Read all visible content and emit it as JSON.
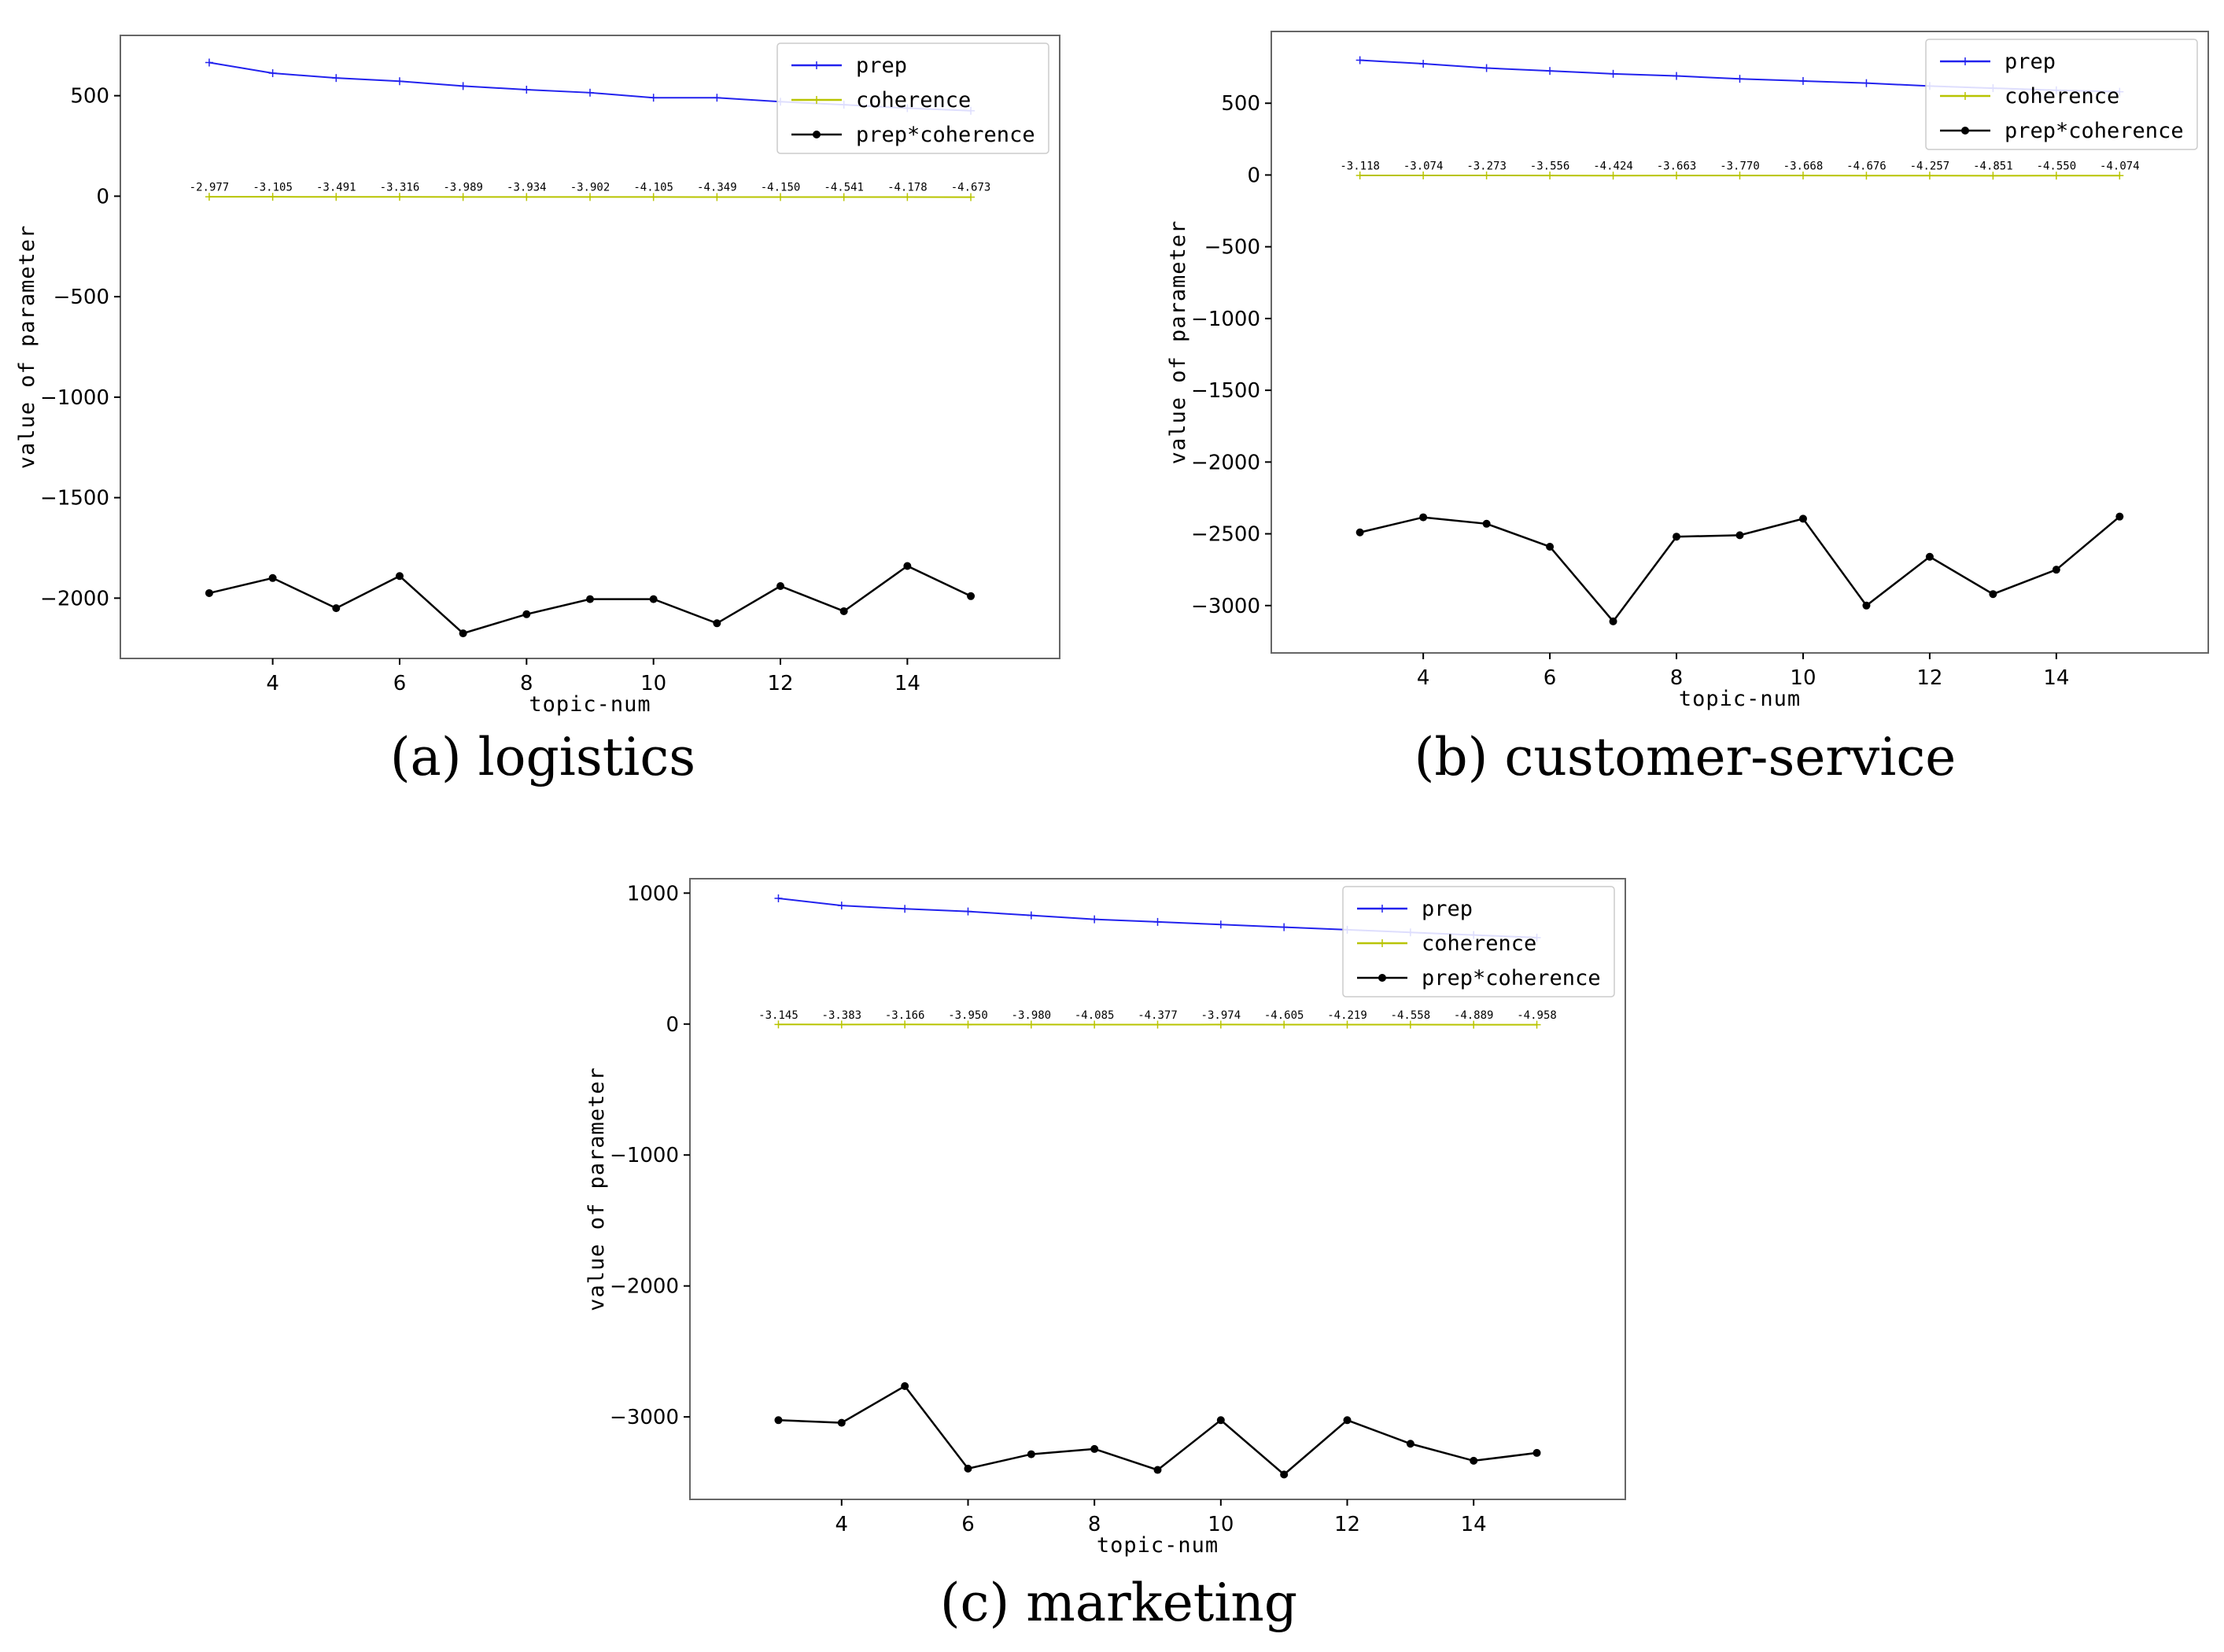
{
  "figure": {
    "panels": [
      {
        "caption_label": "(a)",
        "caption_text": "logistics"
      },
      {
        "caption_label": "(b)",
        "caption_text": "customer-service"
      },
      {
        "caption_label": "(c)",
        "caption_text": "marketing"
      }
    ]
  },
  "colors": {
    "prep": "#2222ee",
    "coherence": "#b8c400",
    "product": "#000000",
    "frame": "#666666"
  },
  "chart_data": [
    {
      "type": "line",
      "caption": "(a) logistics",
      "xlabel": "topic-num",
      "ylabel": "value of parameter",
      "x": [
        3,
        4,
        5,
        6,
        7,
        8,
        9,
        10,
        11,
        12,
        13,
        14,
        15
      ],
      "xticks": [
        4,
        6,
        8,
        10,
        12,
        14
      ],
      "xlim": [
        1.6,
        16.4
      ],
      "yticks": [
        500,
        0,
        -500,
        -1000,
        -1500,
        -2000
      ],
      "ylim": [
        -2300,
        800
      ],
      "legend": "top-right",
      "series": [
        {
          "name": "prep",
          "marker": "+",
          "values": [
            665,
            612,
            588,
            572,
            548,
            530,
            515,
            490,
            490,
            470,
            455,
            438,
            425
          ]
        },
        {
          "name": "coherence",
          "marker": "+",
          "values": [
            -2.977,
            -3.105,
            -3.491,
            -3.316,
            -3.989,
            -3.934,
            -3.902,
            -4.105,
            -4.349,
            -4.15,
            -4.541,
            -4.178,
            -4.673
          ]
        },
        {
          "name": "prep*coherence",
          "marker": "o",
          "values": [
            -1975,
            -1900,
            -2050,
            -1890,
            -2175,
            -2080,
            -2005,
            -2005,
            -2125,
            -1940,
            -2065,
            -1840,
            -1990
          ]
        }
      ],
      "data_labels": [
        "-2.977",
        "-3.105",
        "-3.491",
        "-3.316",
        "-3.989",
        "-3.934",
        "-3.902",
        "-4.105",
        "-4.349",
        "-4.150",
        "-4.541",
        "-4.178",
        "-4.673"
      ]
    },
    {
      "type": "line",
      "caption": "(b) customer-service",
      "xlabel": "topic-num",
      "ylabel": "value of parameter",
      "x": [
        3,
        4,
        5,
        6,
        7,
        8,
        9,
        10,
        11,
        12,
        13,
        14,
        15
      ],
      "xticks": [
        4,
        6,
        8,
        10,
        12,
        14
      ],
      "xlim": [
        1.6,
        16.4
      ],
      "yticks": [
        500,
        0,
        -500,
        -1000,
        -1500,
        -2000,
        -2500,
        -3000
      ],
      "ylim": [
        -3330,
        1000
      ],
      "legend": "top-right",
      "series": [
        {
          "name": "prep",
          "marker": "+",
          "values": [
            800,
            775,
            745,
            725,
            705,
            690,
            670,
            655,
            640,
            620,
            605,
            590,
            580
          ]
        },
        {
          "name": "coherence",
          "marker": "+",
          "values": [
            -3.118,
            -3.074,
            -3.273,
            -3.556,
            -4.424,
            -3.663,
            -3.77,
            -3.668,
            -4.676,
            -4.257,
            -4.851,
            -4.55,
            -4.074
          ]
        },
        {
          "name": "prep*coherence",
          "marker": "o",
          "values": [
            -2490,
            -2385,
            -2430,
            -2590,
            -3110,
            -2520,
            -2510,
            -2395,
            -3000,
            -2660,
            -2920,
            -2750,
            -2380
          ]
        }
      ],
      "data_labels": [
        "-3.118",
        "-3.074",
        "-3.273",
        "-3.556",
        "-4.424",
        "-3.663",
        "-3.770",
        "-3.668",
        "-4.676",
        "-4.257",
        "-4.851",
        "-4.550",
        "-4.074"
      ]
    },
    {
      "type": "line",
      "caption": "(c) marketing",
      "xlabel": "topic-num",
      "ylabel": "value of parameter",
      "x": [
        3,
        4,
        5,
        6,
        7,
        8,
        9,
        10,
        11,
        12,
        13,
        14,
        15
      ],
      "xticks": [
        4,
        6,
        8,
        10,
        12,
        14
      ],
      "xlim": [
        1.6,
        16.4
      ],
      "yticks": [
        1000,
        0,
        -1000,
        -2000,
        -3000
      ],
      "ylim": [
        -3630,
        1110
      ],
      "legend": "top-right",
      "series": [
        {
          "name": "prep",
          "marker": "+",
          "values": [
            960,
            905,
            880,
            860,
            830,
            800,
            780,
            760,
            740,
            720,
            700,
            680,
            660
          ]
        },
        {
          "name": "coherence",
          "marker": "+",
          "values": [
            -3.145,
            -3.383,
            -3.166,
            -3.95,
            -3.98,
            -4.085,
            -4.377,
            -3.974,
            -4.605,
            -4.219,
            -4.558,
            -4.889,
            -4.958
          ]
        },
        {
          "name": "prep*coherence",
          "marker": "o",
          "values": [
            -3025,
            -3045,
            -2765,
            -3395,
            -3285,
            -3245,
            -3405,
            -3025,
            -3440,
            -3025,
            -3205,
            -3335,
            -3275
          ]
        }
      ],
      "data_labels": [
        "-3.145",
        "-3.383",
        "-3.166",
        "-3.950",
        "-3.980",
        "-4.085",
        "-4.377",
        "-3.974",
        "-4.605",
        "-4.219",
        "-4.558",
        "-4.889",
        "-4.958"
      ]
    }
  ]
}
